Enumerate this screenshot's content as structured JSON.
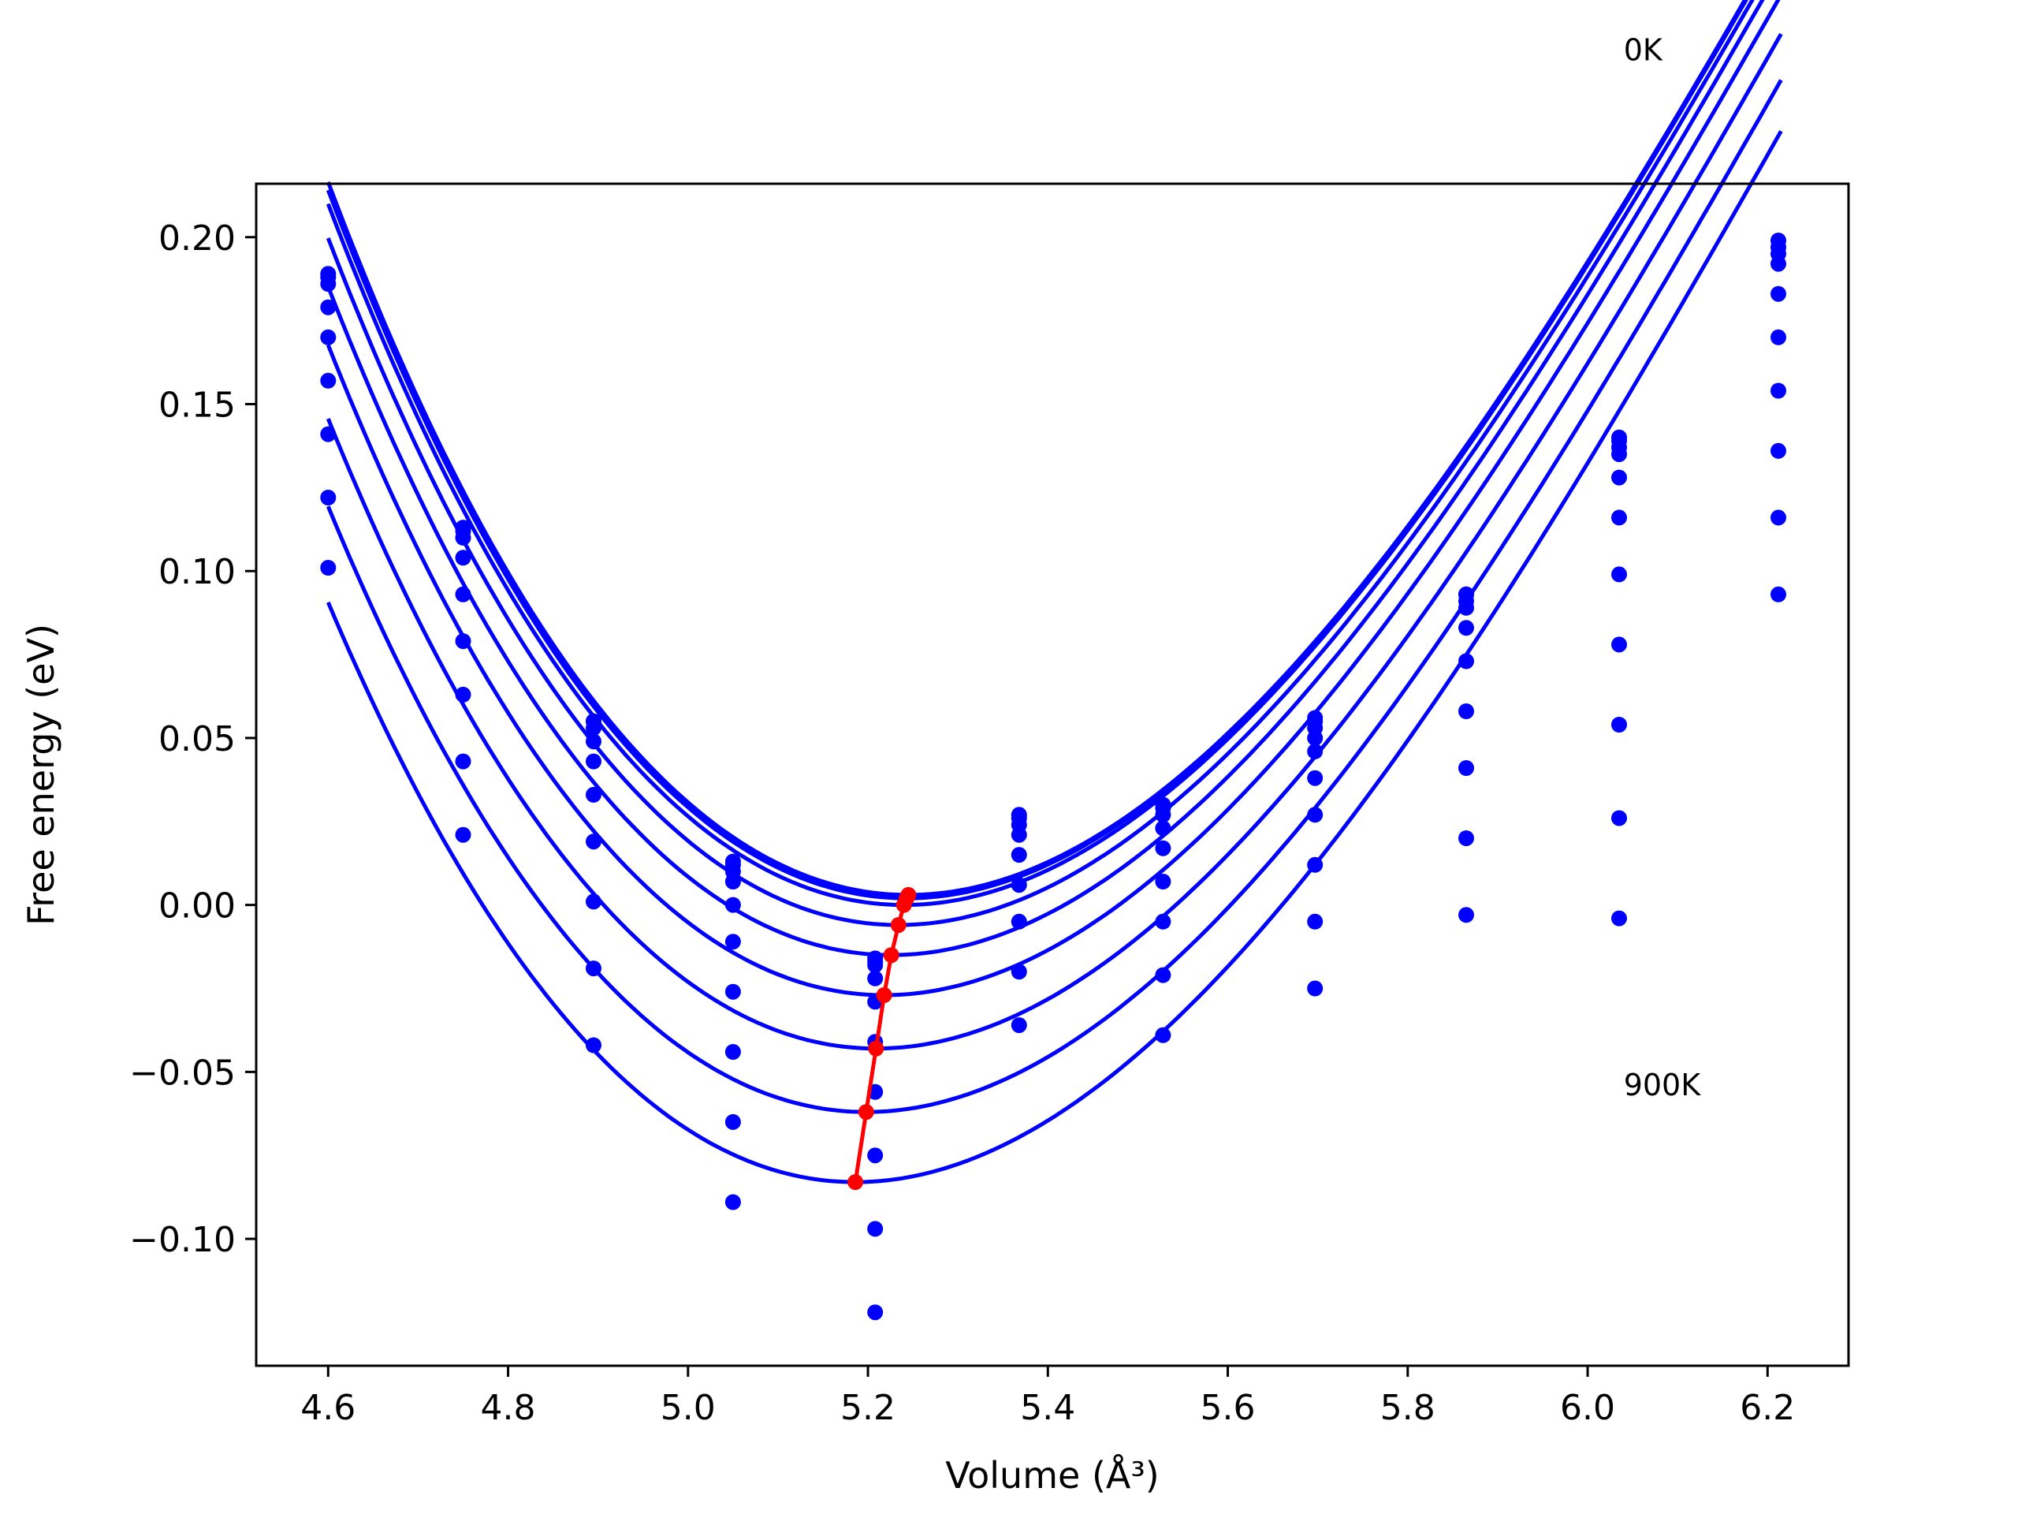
{
  "chart_data": {
    "type": "scatter",
    "xlabel": "Volume (Å³)",
    "ylabel": "Free energy (eV)",
    "xlim": [
      4.52,
      6.29
    ],
    "ylim": [
      -0.138,
      0.216
    ],
    "xticks": [
      "4.6",
      "4.8",
      "5.0",
      "5.2",
      "5.4",
      "5.6",
      "5.8",
      "6.0",
      "6.2"
    ],
    "yticks": [
      "−0.10",
      "−0.05",
      "0.00",
      "0.05",
      "0.10",
      "0.15",
      "0.20"
    ],
    "xtick_values": [
      4.6,
      4.8,
      5.0,
      5.2,
      5.4,
      5.6,
      5.8,
      6.0,
      6.2
    ],
    "ytick_values": [
      -0.1,
      -0.05,
      0.0,
      0.05,
      0.1,
      0.15,
      0.2
    ],
    "annotations": [
      {
        "text": "0K",
        "x": 6.04,
        "y": 0.253
      },
      {
        "text": "900K",
        "x": 6.04,
        "y": -0.057
      }
    ],
    "colors": {
      "fit_curves": "#0000ff",
      "data_points": "#0000ff",
      "minimum_path": "#ff0000"
    },
    "volumes": [
      4.6,
      4.75,
      4.895,
      5.05,
      5.208,
      5.368,
      5.528,
      5.697,
      5.865,
      6.035,
      6.212
    ],
    "series": [
      {
        "values": [
          0.188,
          0.113,
          0.055,
          0.013,
          -0.016,
          0.027,
          0.03,
          0.056,
          0.093,
          0.14,
          0.199
        ],
        "fit": {
          "vmin": 5.245,
          "emin": 0.003,
          "a": 0.43,
          "b": 0.3
        }
      },
      {
        "values": [
          0.189,
          0.112,
          0.055,
          0.012,
          -0.017,
          0.026,
          0.029,
          0.055,
          0.093,
          0.139,
          0.197
        ],
        "fit": {
          "vmin": 5.243,
          "emin": 0.002,
          "a": 0.43,
          "b": 0.3
        }
      },
      {
        "values": [
          0.186,
          0.11,
          0.053,
          0.01,
          -0.018,
          0.024,
          0.027,
          0.053,
          0.091,
          0.137,
          0.195
        ],
        "fit": {
          "vmin": 5.24,
          "emin": 0.0,
          "a": 0.43,
          "b": 0.3
        }
      },
      {
        "values": [
          0.179,
          0.104,
          0.049,
          0.007,
          -0.022,
          0.021,
          0.023,
          0.05,
          0.089,
          0.135,
          0.192
        ],
        "fit": {
          "vmin": 5.234,
          "emin": -0.006,
          "a": 0.43,
          "b": 0.3
        }
      },
      {
        "values": [
          0.17,
          0.093,
          0.043,
          0.0,
          -0.029,
          0.015,
          0.017,
          0.046,
          0.083,
          0.128,
          0.183
        ],
        "fit": {
          "vmin": 5.226,
          "emin": -0.015,
          "a": 0.43,
          "b": 0.3
        }
      },
      {
        "values": [
          0.157,
          0.079,
          0.033,
          -0.011,
          -0.041,
          0.006,
          0.007,
          0.038,
          0.073,
          0.116,
          0.17
        ],
        "fit": {
          "vmin": 5.218,
          "emin": -0.027,
          "a": 0.43,
          "b": 0.3
        }
      },
      {
        "values": [
          0.141,
          0.063,
          0.019,
          -0.026,
          -0.056,
          -0.005,
          -0.005,
          0.027,
          0.058,
          0.099,
          0.154
        ],
        "fit": {
          "vmin": 5.209,
          "emin": -0.043,
          "a": 0.43,
          "b": 0.3
        }
      },
      {
        "values": [
          0.122,
          0.043,
          0.001,
          -0.044,
          -0.075,
          -0.02,
          -0.021,
          0.012,
          0.041,
          0.078,
          0.136
        ],
        "fit": {
          "vmin": 5.198,
          "emin": -0.062,
          "a": 0.43,
          "b": 0.3
        }
      },
      {
        "values": [
          0.101,
          0.021,
          -0.019,
          -0.065,
          -0.097,
          -0.036,
          -0.039,
          -0.005,
          0.02,
          0.054,
          0.116
        ],
        "fit": {
          "vmin": 5.186,
          "emin": -0.083,
          "a": 0.43,
          "b": 0.3
        }
      },
      {
        "values": [
          null,
          null,
          -0.042,
          -0.089,
          -0.122,
          null,
          null,
          -0.025,
          -0.003,
          0.026,
          0.093
        ],
        "fit": null
      },
      {
        "values": [
          null,
          null,
          null,
          null,
          null,
          null,
          null,
          null,
          null,
          -0.004,
          null
        ],
        "fit": null
      }
    ],
    "minimum_path": {
      "x": [
        5.245,
        5.243,
        5.24,
        5.234,
        5.226,
        5.218,
        5.209,
        5.198,
        5.186
      ],
      "y": [
        0.003,
        0.002,
        0.0,
        -0.006,
        -0.015,
        -0.027,
        -0.043,
        -0.062,
        -0.083
      ]
    }
  }
}
